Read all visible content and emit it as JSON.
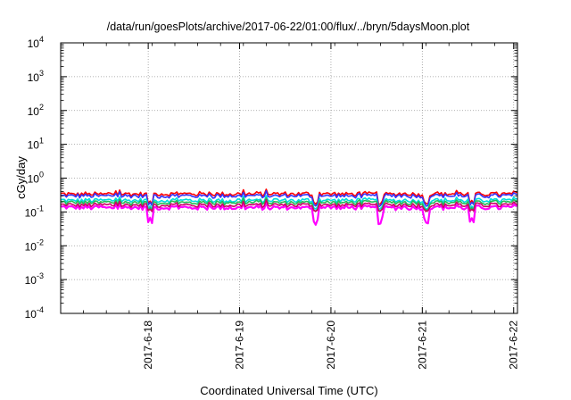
{
  "chart_data": {
    "type": "line",
    "title": "/data/run/goesPlots/archive/2017-06-22/01:00/flux/../bryn/5daysMoon.plot",
    "xlabel": "Coordinated Universal Time (UTC)",
    "ylabel": "cGy/day",
    "yscale": "log",
    "ylim": [
      0.0001,
      10000
    ],
    "y_ticks": [
      {
        "base": "10",
        "exp": "-4",
        "value": 0.0001
      },
      {
        "base": "10",
        "exp": "-3",
        "value": 0.001
      },
      {
        "base": "10",
        "exp": "-2",
        "value": 0.01
      },
      {
        "base": "10",
        "exp": "-1",
        "value": 0.1
      },
      {
        "base": "10",
        "exp": "0",
        "value": 1
      },
      {
        "base": "10",
        "exp": "1",
        "value": 10
      },
      {
        "base": "10",
        "exp": "2",
        "value": 100
      },
      {
        "base": "10",
        "exp": "3",
        "value": 1000
      },
      {
        "base": "10",
        "exp": "4",
        "value": 10000
      }
    ],
    "xlim": [
      "2017-06-17 01:00",
      "2017-06-22 01:00"
    ],
    "x_ticks": [
      "2017-6-18",
      "2017-6-19",
      "2017-6-20",
      "2017-6-21",
      "2017-6-22"
    ],
    "grid": true,
    "legend": "none",
    "series": [
      {
        "color": "#ff0000",
        "base": 0.34,
        "dip": 0.55,
        "spike": 1.25
      },
      {
        "color": "#3333ff",
        "base": 0.3,
        "dip": 0.55,
        "spike": 1.2
      },
      {
        "color": "#00dddd",
        "base": 0.22,
        "dip": 0.6,
        "spike": 1.15
      },
      {
        "color": "#22bb55",
        "base": 0.19,
        "dip": 0.62,
        "spike": 1.12
      },
      {
        "color": "#ff00ff",
        "base": 0.135,
        "dip": 0.4,
        "spike": 1.1
      },
      {
        "color": "#cc0066",
        "base": 0.16,
        "dip": 0.7,
        "spike": 1.1
      }
    ]
  }
}
